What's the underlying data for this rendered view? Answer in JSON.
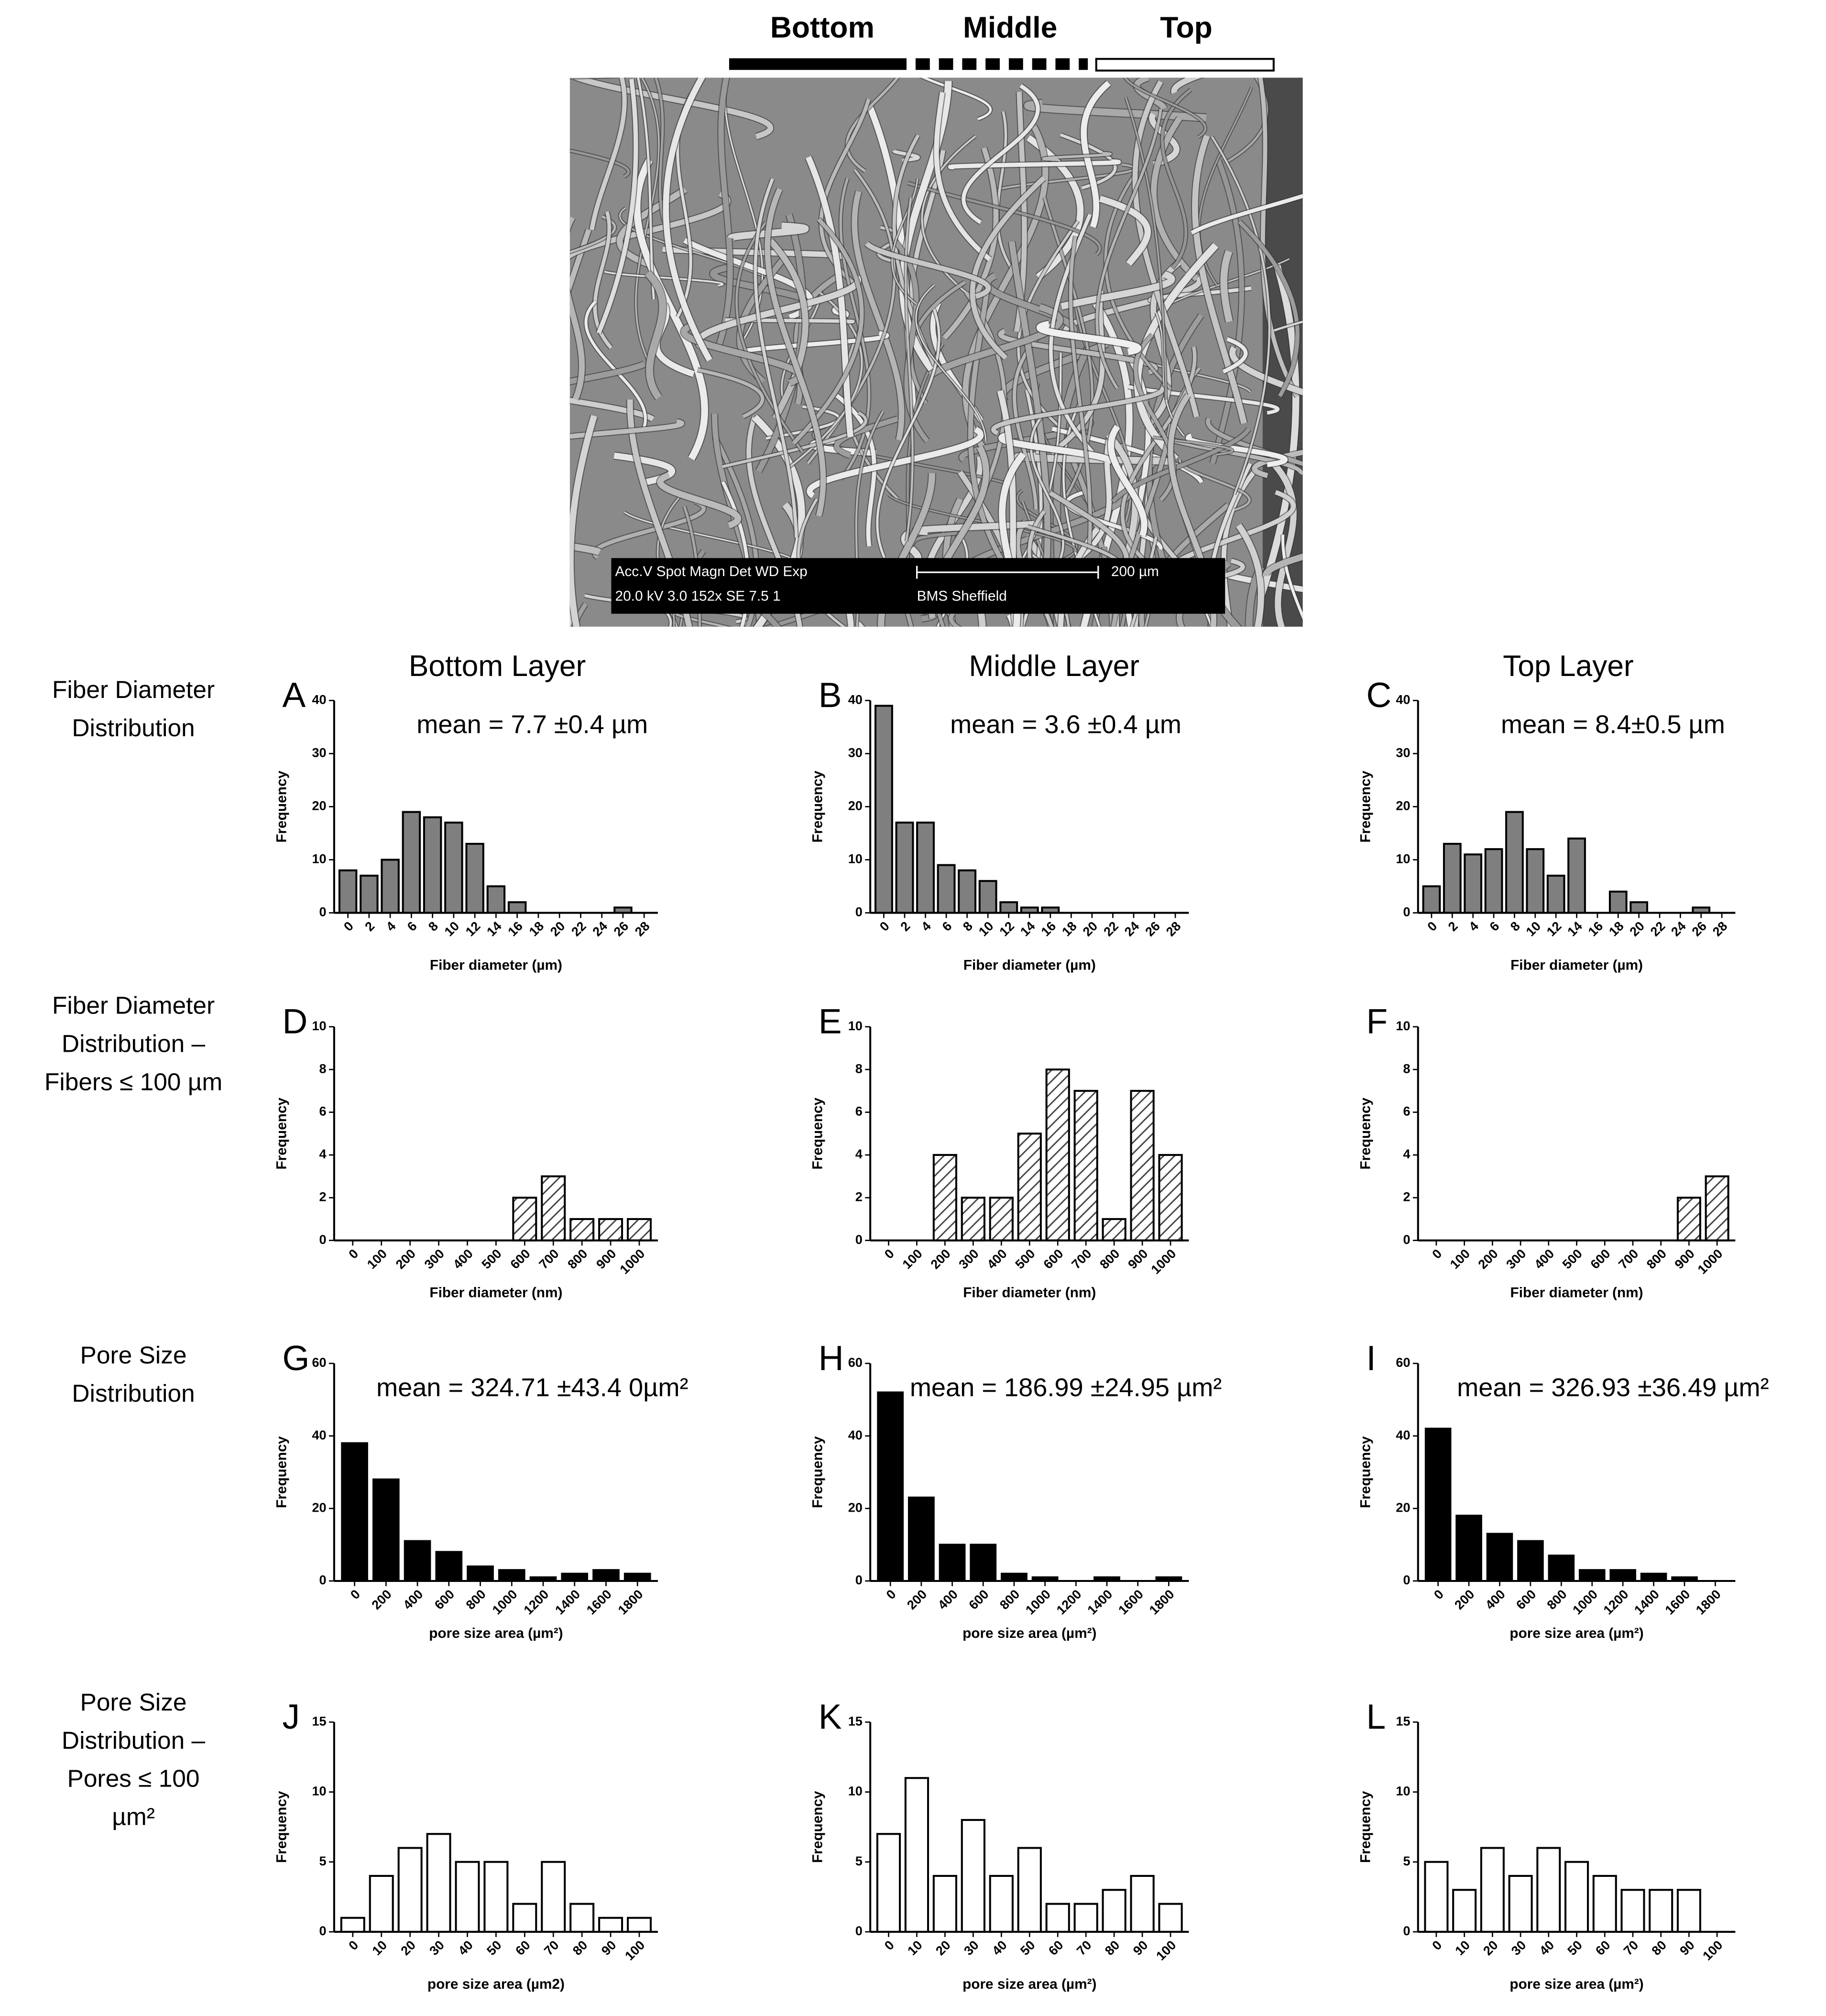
{
  "header": {
    "layers": [
      "Bottom",
      "Middle",
      "Top"
    ],
    "sem_info": {
      "params": "Acc.V  Spot Magn    Det  WD   Exp",
      "values": "20.0 kV 3.0   152x     SE   7.5    1",
      "scale": "200 µm",
      "lab": "BMS Sheffield"
    }
  },
  "column_titles": [
    "Bottom Layer",
    "Middle Layer",
    "Top Layer"
  ],
  "row_labels": [
    [
      "Fiber Diameter",
      "Distribution"
    ],
    [
      "Fiber Diameter",
      "Distribution –",
      "Fibers ≤ 100 µm"
    ],
    [
      "Pore Size",
      "Distribution"
    ],
    [
      "Pore Size",
      "Distribution –",
      "Pores ≤ 100",
      "µm²"
    ]
  ],
  "chart_data": [
    {
      "type": "bar",
      "label": "A",
      "annotation": "mean = 7.7 ±0.4 µm",
      "categories": [
        "0",
        "2",
        "4",
        "6",
        "8",
        "10",
        "12",
        "14",
        "16",
        "18",
        "20",
        "22",
        "24",
        "26",
        "28"
      ],
      "values": [
        8,
        7,
        10,
        19,
        18,
        17,
        13,
        5,
        2,
        0,
        0,
        0,
        0,
        1,
        0
      ],
      "color": "#7f7f7f",
      "xlabel": "Fiber diameter (µm)",
      "ylabel": "Frequency",
      "ylim": [
        0,
        40
      ],
      "yticks": [
        0,
        10,
        20,
        30,
        40
      ]
    },
    {
      "type": "bar",
      "label": "B",
      "annotation": "mean = 3.6 ±0.4 µm",
      "categories": [
        "0",
        "2",
        "4",
        "6",
        "8",
        "10",
        "12",
        "14",
        "16",
        "18",
        "20",
        "22",
        "24",
        "26",
        "28"
      ],
      "values": [
        39,
        17,
        17,
        9,
        8,
        6,
        2,
        1,
        1,
        0,
        0,
        0,
        0,
        0,
        0
      ],
      "color": "#7f7f7f",
      "xlabel": "Fiber diameter (µm)",
      "ylabel": "Frequency",
      "ylim": [
        0,
        40
      ],
      "yticks": [
        0,
        10,
        20,
        30,
        40
      ]
    },
    {
      "type": "bar",
      "label": "C",
      "annotation": "mean = 8.4±0.5 µm",
      "categories": [
        "0",
        "2",
        "4",
        "6",
        "8",
        "10",
        "12",
        "14",
        "16",
        "18",
        "20",
        "22",
        "24",
        "26",
        "28"
      ],
      "values": [
        5,
        13,
        11,
        12,
        19,
        12,
        7,
        14,
        0,
        4,
        2,
        0,
        0,
        1,
        0
      ],
      "color": "#7f7f7f",
      "xlabel": "Fiber diameter (µm)",
      "ylabel": "Frequency",
      "ylim": [
        0,
        40
      ],
      "yticks": [
        0,
        10,
        20,
        30,
        40
      ]
    },
    {
      "type": "bar",
      "label": "D",
      "categories": [
        "0",
        "100",
        "200",
        "300",
        "400",
        "500",
        "600",
        "700",
        "800",
        "900",
        "1000"
      ],
      "values": [
        0,
        0,
        0,
        0,
        0,
        0,
        2,
        3,
        1,
        1,
        1
      ],
      "color": "#ffffff",
      "hatch": true,
      "xlabel": "Fiber diameter (nm)",
      "ylabel": "Frequency",
      "ylim": [
        0,
        10
      ],
      "yticks": [
        0,
        2,
        4,
        6,
        8,
        10
      ]
    },
    {
      "type": "bar",
      "label": "E",
      "categories": [
        "0",
        "100",
        "200",
        "300",
        "400",
        "500",
        "600",
        "700",
        "800",
        "900",
        "1000"
      ],
      "values": [
        0,
        0,
        4,
        2,
        2,
        5,
        8,
        7,
        1,
        7,
        4
      ],
      "color": "#ffffff",
      "hatch": true,
      "xlabel": "Fiber diameter (nm)",
      "ylabel": "Frequency",
      "ylim": [
        0,
        10
      ],
      "yticks": [
        0,
        2,
        4,
        6,
        8,
        10
      ]
    },
    {
      "type": "bar",
      "label": "F",
      "categories": [
        "0",
        "100",
        "200",
        "300",
        "400",
        "500",
        "600",
        "700",
        "800",
        "900",
        "1000"
      ],
      "values": [
        0,
        0,
        0,
        0,
        0,
        0,
        0,
        0,
        0,
        2,
        3
      ],
      "color": "#ffffff",
      "hatch": true,
      "xlabel": "Fiber diameter (nm)",
      "ylabel": "Frequency",
      "ylim": [
        0,
        10
      ],
      "yticks": [
        0,
        2,
        4,
        6,
        8,
        10
      ]
    },
    {
      "type": "bar",
      "label": "G",
      "annotation": "mean = 324.71 ±43.4 0µm²",
      "categories": [
        "0",
        "200",
        "400",
        "600",
        "800",
        "1000",
        "1200",
        "1400",
        "1600",
        "1800"
      ],
      "values": [
        38,
        28,
        11,
        8,
        4,
        3,
        1,
        2,
        3,
        2
      ],
      "color": "#000000",
      "xlabel": "pore size area (µm²)",
      "ylabel": "Frequency",
      "ylim": [
        0,
        60
      ],
      "yticks": [
        0,
        20,
        40,
        60
      ]
    },
    {
      "type": "bar",
      "label": "H",
      "annotation": "mean = 186.99 ±24.95 µm²",
      "categories": [
        "0",
        "200",
        "400",
        "600",
        "800",
        "1000",
        "1200",
        "1400",
        "1600",
        "1800"
      ],
      "values": [
        52,
        23,
        10,
        10,
        2,
        1,
        0,
        1,
        0,
        1
      ],
      "color": "#000000",
      "xlabel": "pore size area (µm²)",
      "ylabel": "Frequency",
      "ylim": [
        0,
        60
      ],
      "yticks": [
        0,
        20,
        40,
        60
      ]
    },
    {
      "type": "bar",
      "label": "I",
      "annotation": "mean = 326.93 ±36.49 µm²",
      "categories": [
        "0",
        "200",
        "400",
        "600",
        "800",
        "1000",
        "1200",
        "1400",
        "1600",
        "1800"
      ],
      "values": [
        42,
        18,
        13,
        11,
        7,
        3,
        3,
        2,
        1,
        0
      ],
      "color": "#000000",
      "xlabel": "pore size area (µm²)",
      "ylabel": "Frequency",
      "ylim": [
        0,
        60
      ],
      "yticks": [
        0,
        20,
        40,
        60
      ]
    },
    {
      "type": "bar",
      "label": "J",
      "categories": [
        "0",
        "10",
        "20",
        "30",
        "40",
        "50",
        "60",
        "70",
        "80",
        "90",
        "100"
      ],
      "values": [
        1,
        4,
        6,
        7,
        5,
        5,
        2,
        5,
        2,
        1,
        1
      ],
      "color": "#ffffff",
      "xlabel": "pore size area (µm2)",
      "ylabel": "Frequency",
      "ylim": [
        0,
        15
      ],
      "yticks": [
        0,
        5,
        10,
        15
      ]
    },
    {
      "type": "bar",
      "label": "K",
      "categories": [
        "0",
        "10",
        "20",
        "30",
        "40",
        "50",
        "60",
        "70",
        "80",
        "90",
        "100"
      ],
      "values": [
        7,
        11,
        4,
        8,
        4,
        6,
        2,
        2,
        3,
        4,
        2
      ],
      "color": "#ffffff",
      "xlabel": "pore size area (µm²)",
      "ylabel": "Frequency",
      "ylim": [
        0,
        15
      ],
      "yticks": [
        0,
        5,
        10,
        15
      ]
    },
    {
      "type": "bar",
      "label": "L",
      "categories": [
        "0",
        "10",
        "20",
        "30",
        "40",
        "50",
        "60",
        "70",
        "80",
        "90",
        "100"
      ],
      "values": [
        5,
        3,
        6,
        4,
        6,
        5,
        4,
        3,
        3,
        3,
        0
      ],
      "color": "#ffffff",
      "xlabel": "pore size area (µm²)",
      "ylabel": "Frequency",
      "ylim": [
        0,
        15
      ],
      "yticks": [
        0,
        5,
        10,
        15
      ]
    }
  ]
}
